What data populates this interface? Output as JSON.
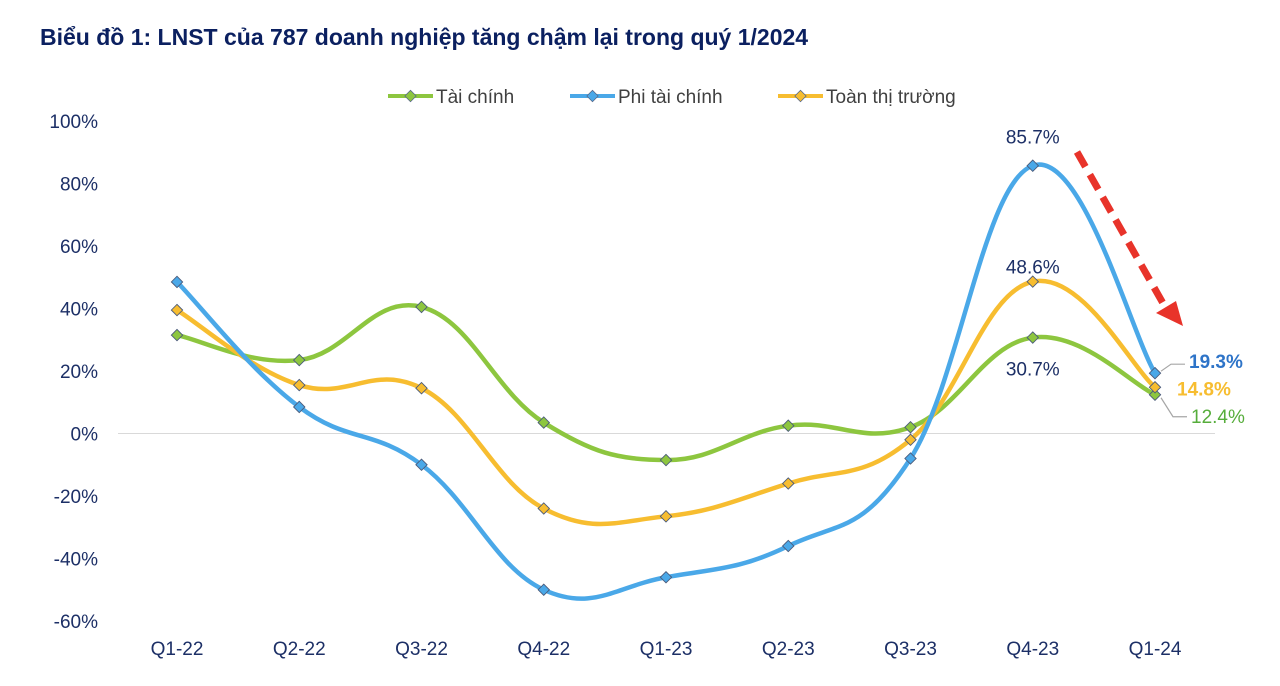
{
  "chart_data": {
    "type": "line",
    "title": "Biểu đồ 1: LNST của 787 doanh nghiệp tăng chậm lại trong quý 1/2024",
    "categories": [
      "Q1-22",
      "Q2-22",
      "Q3-22",
      "Q4-22",
      "Q1-23",
      "Q2-23",
      "Q3-23",
      "Q4-23",
      "Q1-24"
    ],
    "ylim": [
      -60,
      100
    ],
    "yticks": [
      -60,
      -40,
      -20,
      0,
      20,
      40,
      60,
      80,
      100
    ],
    "ytick_labels": [
      "-60%",
      "-40%",
      "-20%",
      "0%",
      "20%",
      "40%",
      "60%",
      "80%",
      "100%"
    ],
    "legend_position": "top-center",
    "grid": false,
    "series": [
      {
        "name": "Tài chính",
        "color": "#8dc63f",
        "values": [
          31.5,
          23.5,
          40.5,
          3.5,
          -8.5,
          2.5,
          2.0,
          30.7,
          12.4
        ]
      },
      {
        "name": "Phi tài chính",
        "color": "#4aa8e8",
        "values": [
          48.5,
          8.5,
          -10.0,
          -50.0,
          -46.0,
          -36.0,
          -8.0,
          85.7,
          19.3
        ]
      },
      {
        "name": "Toàn thị trường",
        "color": "#f7bd30",
        "values": [
          39.5,
          15.5,
          14.5,
          -24.0,
          -26.5,
          -16.0,
          -2.0,
          48.6,
          14.8
        ]
      }
    ],
    "annotations": [
      {
        "text": "85.7%",
        "series": 1,
        "index": 7,
        "color": "#1c2f66",
        "bold": false
      },
      {
        "text": "48.6%",
        "series": 2,
        "index": 7,
        "color": "#1c2f66",
        "bold": false
      },
      {
        "text": "30.7%",
        "series": 0,
        "index": 7,
        "color": "#1c2f66",
        "bold": false
      },
      {
        "text": "19.3%",
        "series": 1,
        "index": 8,
        "color": "#2e74c8",
        "bold": true
      },
      {
        "text": "14.8%",
        "series": 2,
        "index": 8,
        "color": "#f7bd30",
        "bold": true
      },
      {
        "text": "12.4%",
        "series": 0,
        "index": 8,
        "color": "#56ad3b",
        "bold": false
      }
    ],
    "trend_arrow": {
      "color": "#e8332a",
      "direction": "down"
    }
  }
}
